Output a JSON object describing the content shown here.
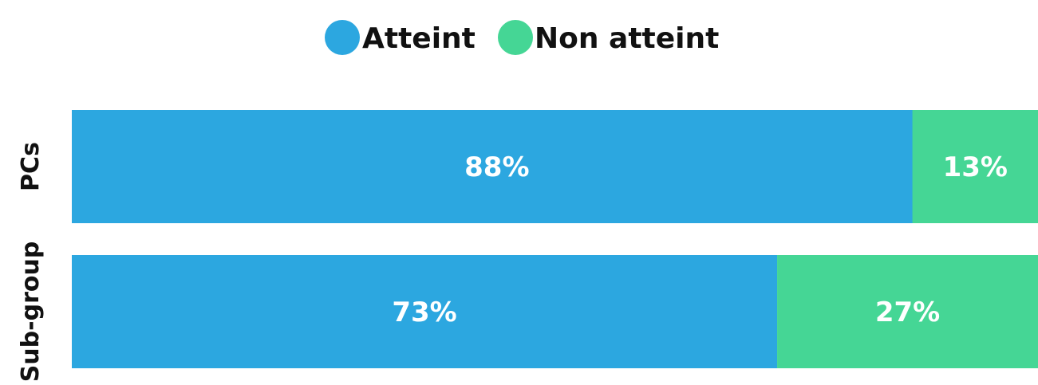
{
  "chart_data": {
    "type": "bar",
    "orientation": "horizontal",
    "stacked": true,
    "categories": [
      "PCs",
      "Sub-group"
    ],
    "series": [
      {
        "name": "Atteint",
        "values": [
          88,
          73
        ],
        "labels": [
          "88%",
          "73%"
        ],
        "color": "#2ca7e0"
      },
      {
        "name": "Non atteint",
        "values": [
          13,
          27
        ],
        "labels": [
          "13%",
          "27%"
        ],
        "color": "#45d695"
      }
    ],
    "xlim": [
      0,
      100
    ],
    "grid": false,
    "legend_position": "top-center"
  }
}
